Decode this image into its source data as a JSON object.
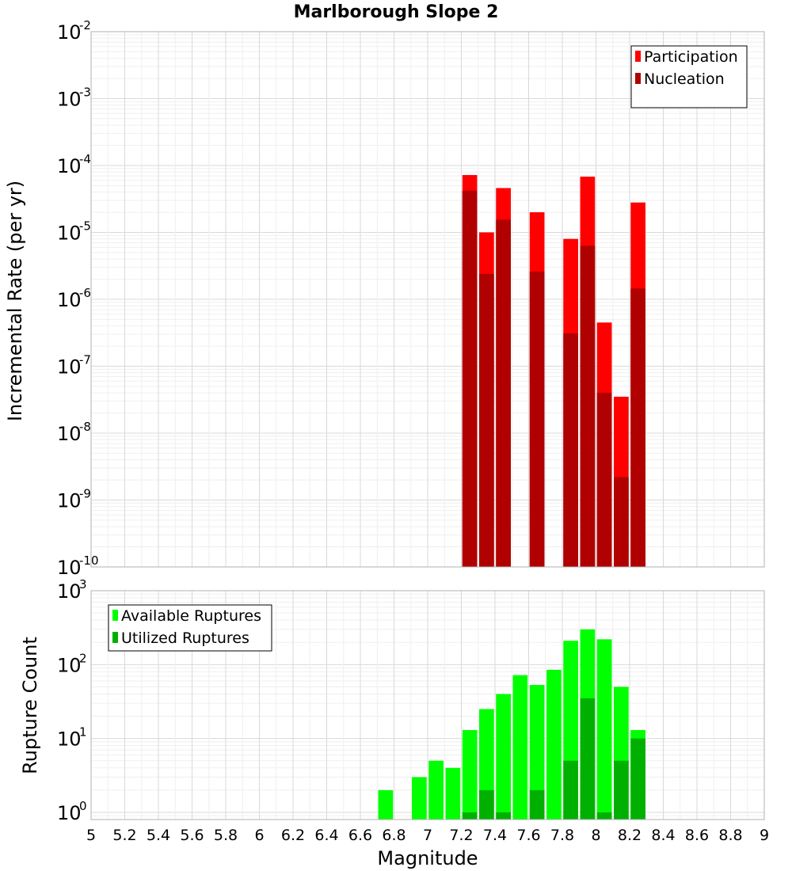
{
  "chart_data": [
    {
      "type": "bar",
      "title": "Marlborough Slope 2",
      "xlabel": "",
      "ylabel": "Incremental Rate (per yr)",
      "yscale": "log",
      "ylim": [
        1e-10,
        0.01
      ],
      "xlim": [
        5,
        9
      ],
      "grid": true,
      "legend_position": "top-right",
      "x": [
        7.25,
        7.35,
        7.45,
        7.65,
        7.85,
        7.95,
        8.05,
        8.15,
        8.25
      ],
      "series": [
        {
          "name": "Participation",
          "color": "#ff0000",
          "values": [
            7.2e-05,
            1e-05,
            4.6e-05,
            2e-05,
            8e-06,
            6.8e-05,
            4.5e-07,
            3.5e-08,
            2.8e-05
          ]
        },
        {
          "name": "Nucleation",
          "color": "#b00000",
          "values": [
            4.2e-05,
            2.4e-06,
            1.55e-05,
            2.6e-06,
            3.1e-07,
            6.3e-06,
            4e-08,
            2.2e-09,
            1.45e-06
          ]
        }
      ],
      "y_tick_exponents": [
        -10,
        -9,
        -8,
        -7,
        -6,
        -5,
        -4,
        -3,
        -2
      ]
    },
    {
      "type": "bar",
      "title": "",
      "xlabel": "Magnitude",
      "ylabel": "Rupture Count",
      "yscale": "log",
      "ylim": [
        0.8,
        1000
      ],
      "xlim": [
        5,
        9
      ],
      "grid": true,
      "legend_position": "top-left",
      "x": [
        6.75,
        6.95,
        7.05,
        7.15,
        7.25,
        7.35,
        7.45,
        7.55,
        7.65,
        7.75,
        7.85,
        7.95,
        8.05,
        8.15,
        8.25
      ],
      "series": [
        {
          "name": "Available Ruptures",
          "color": "#00ff00",
          "values": [
            2,
            3,
            5,
            4,
            13,
            25,
            40,
            72,
            53,
            85,
            210,
            300,
            220,
            50,
            13
          ]
        },
        {
          "name": "Utilized Ruptures",
          "color": "#00b000",
          "values": [
            null,
            null,
            null,
            null,
            1,
            2,
            1,
            null,
            2,
            null,
            5,
            35,
            1,
            5,
            10
          ]
        }
      ],
      "y_tick_exponents": [
        0,
        1,
        2,
        3
      ],
      "x_tick_labels": [
        "5",
        "5.2",
        "5.4",
        "5.6",
        "5.8",
        "6",
        "6.2",
        "6.4",
        "6.6",
        "6.8",
        "7",
        "7.2",
        "7.4",
        "7.6",
        "7.8",
        "8",
        "8.2",
        "8.4",
        "8.6",
        "8.8",
        "9"
      ]
    }
  ]
}
